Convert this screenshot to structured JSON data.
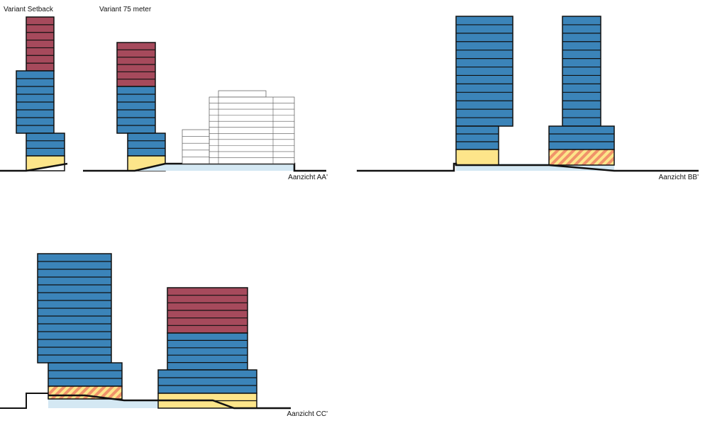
{
  "labels": {
    "variant_setback": "Variant Setback",
    "variant_75": "Variant 75 meter"
  },
  "views": {
    "aa": "Aanzicht  AA'",
    "bb": "Aanzicht BB'",
    "cc": "Aanzicht CC'"
  }
}
